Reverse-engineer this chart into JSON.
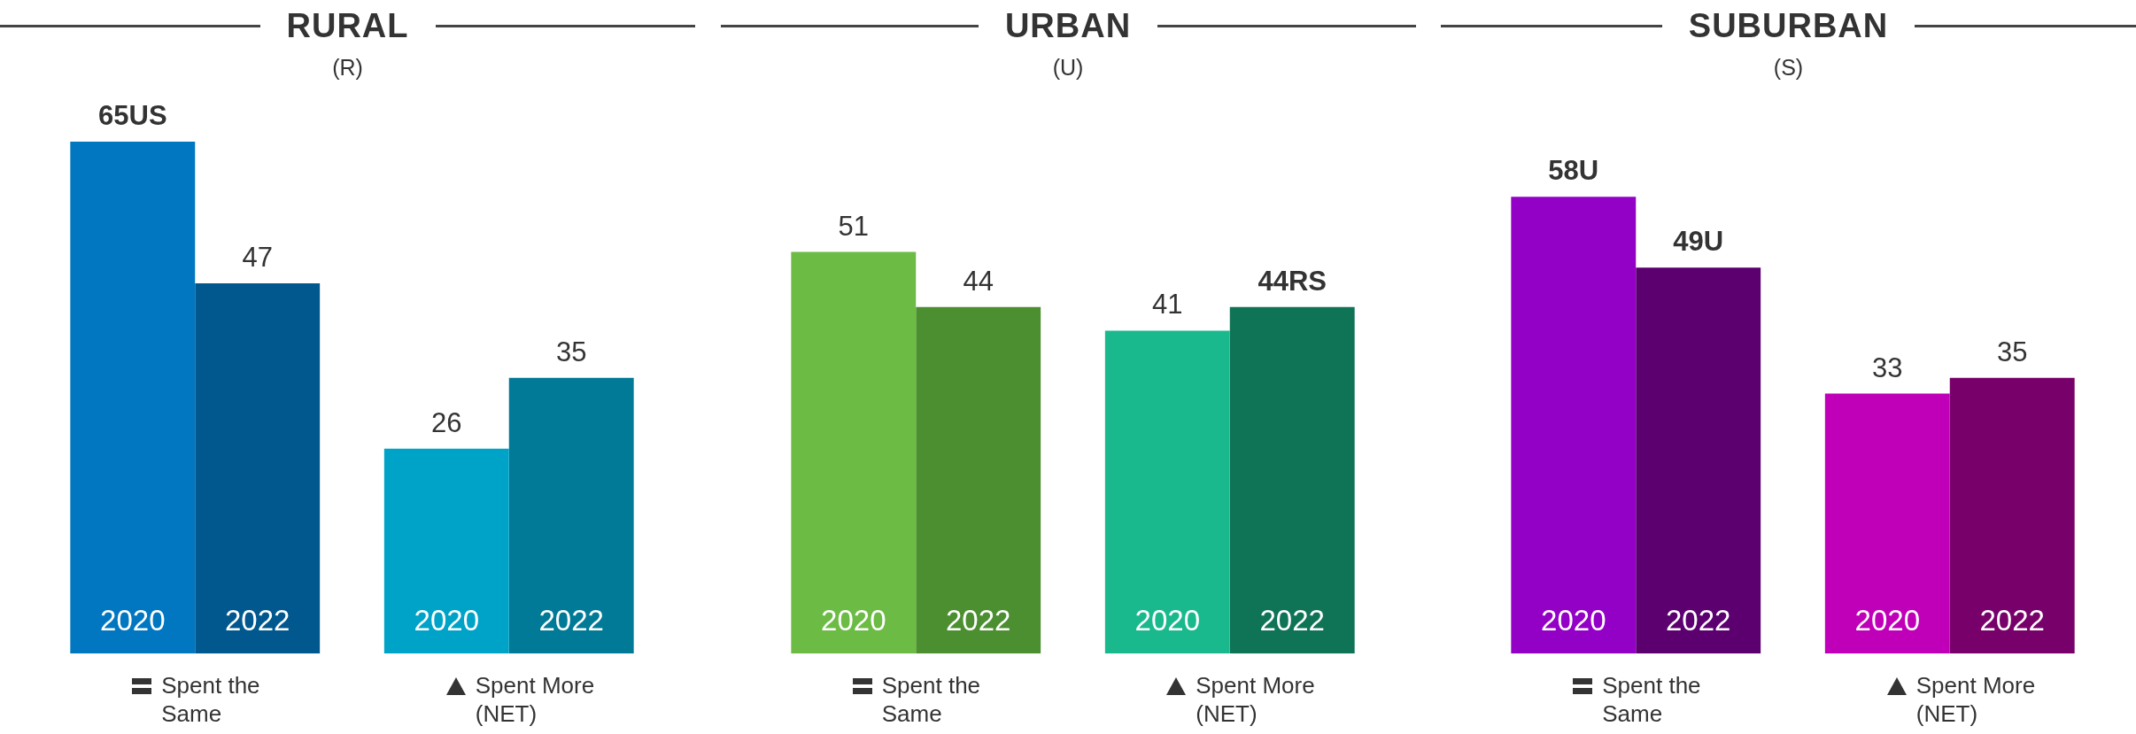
{
  "chart_data": [
    {
      "type": "bar",
      "title": "RURAL",
      "subtitle": "(R)",
      "categories": [
        "Spent the Same",
        "Spent More (NET)"
      ],
      "legend": false,
      "series": [
        {
          "name": "2020",
          "colors": [
            "#0077c0",
            "#00a3c8"
          ],
          "values": [
            65,
            26
          ],
          "value_labels": [
            "65US",
            "26"
          ]
        },
        {
          "name": "2022",
          "colors": [
            "#00588e",
            "#007a96"
          ],
          "values": [
            47,
            35
          ],
          "value_labels": [
            "47",
            "35"
          ]
        }
      ]
    },
    {
      "type": "bar",
      "title": "URBAN",
      "subtitle": "(U)",
      "categories": [
        "Spent the Same",
        "Spent More (NET)"
      ],
      "legend": false,
      "series": [
        {
          "name": "2020",
          "colors": [
            "#6cbb45",
            "#1ab98d"
          ],
          "values": [
            51,
            41
          ],
          "value_labels": [
            "51",
            "41"
          ]
        },
        {
          "name": "2022",
          "colors": [
            "#4b8f30",
            "#0f7356"
          ],
          "values": [
            44,
            44
          ],
          "value_labels": [
            "44",
            "44RS"
          ]
        }
      ]
    },
    {
      "type": "bar",
      "title": "SUBURBAN",
      "subtitle": "(S)",
      "categories": [
        "Spent the Same",
        "Spent More (NET)"
      ],
      "legend": false,
      "series": [
        {
          "name": "2020",
          "colors": [
            "#9300c6",
            "#c000b8"
          ],
          "values": [
            58,
            33
          ],
          "value_labels": [
            "58U",
            "33"
          ]
        },
        {
          "name": "2022",
          "colors": [
            "#5c0070",
            "#78006a"
          ],
          "values": [
            49,
            35
          ],
          "value_labels": [
            "49U",
            "35"
          ]
        }
      ]
    }
  ]
}
